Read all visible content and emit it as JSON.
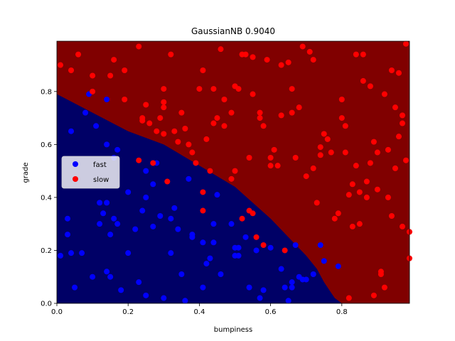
{
  "chart_data": {
    "type": "scatter",
    "title": "GaussianNB 0.9040",
    "xlabel": "bumpiness",
    "ylabel": "grade",
    "xlim": [
      0.0,
      0.99
    ],
    "ylim": [
      0.0,
      0.99
    ],
    "xticks": [
      0.0,
      0.2,
      0.4,
      0.6,
      0.8
    ],
    "yticks": [
      0.0,
      0.2,
      0.4,
      0.6,
      0.8
    ],
    "xtick_labels": [
      "0.0",
      "0.2",
      "0.4",
      "0.6",
      "0.8"
    ],
    "ytick_labels": [
      "0.0",
      "0.2",
      "0.4",
      "0.6",
      "0.8"
    ],
    "grid": false,
    "legend_position": "center-left",
    "background_regions": [
      {
        "class": "fast",
        "color": "#000066"
      },
      {
        "class": "slow",
        "color": "#800000"
      }
    ],
    "decision_boundary": {
      "x": [
        0.0,
        0.1,
        0.2,
        0.3,
        0.4,
        0.5,
        0.55,
        0.6,
        0.65,
        0.7,
        0.73,
        0.75,
        0.77,
        0.78,
        0.79,
        0.8
      ],
      "y": [
        0.79,
        0.72,
        0.65,
        0.6,
        0.52,
        0.44,
        0.38,
        0.32,
        0.25,
        0.18,
        0.13,
        0.08,
        0.04,
        0.02,
        0.01,
        0.0
      ]
    },
    "series": [
      {
        "name": "fast",
        "color": "#0000ff",
        "points": [
          [
            0.01,
            0.18
          ],
          [
            0.03,
            0.32
          ],
          [
            0.03,
            0.26
          ],
          [
            0.04,
            0.65
          ],
          [
            0.04,
            0.19
          ],
          [
            0.05,
            0.06
          ],
          [
            0.07,
            0.19
          ],
          [
            0.08,
            0.72
          ],
          [
            0.09,
            0.79
          ],
          [
            0.1,
            0.1
          ],
          [
            0.11,
            0.67
          ],
          [
            0.12,
            0.38
          ],
          [
            0.12,
            0.3
          ],
          [
            0.13,
            0.34
          ],
          [
            0.14,
            0.77
          ],
          [
            0.14,
            0.6
          ],
          [
            0.14,
            0.38
          ],
          [
            0.14,
            0.12
          ],
          [
            0.15,
            0.26
          ],
          [
            0.15,
            0.1
          ],
          [
            0.16,
            0.55
          ],
          [
            0.16,
            0.32
          ],
          [
            0.17,
            0.58
          ],
          [
            0.17,
            0.3
          ],
          [
            0.18,
            0.05
          ],
          [
            0.2,
            0.42
          ],
          [
            0.2,
            0.19
          ],
          [
            0.22,
            0.28
          ],
          [
            0.23,
            0.08
          ],
          [
            0.24,
            0.35
          ],
          [
            0.25,
            0.5
          ],
          [
            0.25,
            0.4
          ],
          [
            0.25,
            0.03
          ],
          [
            0.27,
            0.45
          ],
          [
            0.27,
            0.29
          ],
          [
            0.28,
            0.53
          ],
          [
            0.29,
            0.33
          ],
          [
            0.3,
            0.02
          ],
          [
            0.32,
            0.32
          ],
          [
            0.32,
            0.19
          ],
          [
            0.33,
            0.36
          ],
          [
            0.34,
            0.28
          ],
          [
            0.35,
            0.11
          ],
          [
            0.36,
            0.01
          ],
          [
            0.37,
            0.47
          ],
          [
            0.38,
            0.26
          ],
          [
            0.38,
            0.25
          ],
          [
            0.41,
            0.23
          ],
          [
            0.41,
            0.06
          ],
          [
            0.42,
            0.15
          ],
          [
            0.43,
            0.17
          ],
          [
            0.44,
            0.3
          ],
          [
            0.44,
            0.23
          ],
          [
            0.45,
            0.41
          ],
          [
            0.46,
            0.11
          ],
          [
            0.49,
            0.3
          ],
          [
            0.5,
            0.21
          ],
          [
            0.5,
            0.18
          ],
          [
            0.51,
            0.18
          ],
          [
            0.51,
            0.21
          ],
          [
            0.53,
            0.25
          ],
          [
            0.54,
            0.06
          ],
          [
            0.56,
            0.2
          ],
          [
            0.57,
            0.02
          ],
          [
            0.58,
            0.05
          ],
          [
            0.6,
            0.21
          ],
          [
            0.63,
            0.13
          ],
          [
            0.64,
            0.06
          ],
          [
            0.65,
            0.01
          ],
          [
            0.66,
            0.08
          ],
          [
            0.66,
            0.06
          ],
          [
            0.67,
            0.22
          ],
          [
            0.68,
            0.1
          ],
          [
            0.69,
            0.09
          ],
          [
            0.7,
            0.09
          ],
          [
            0.72,
            0.11
          ],
          [
            0.74,
            0.22
          ],
          [
            0.75,
            0.16
          ],
          [
            0.79,
            0.14
          ]
        ]
      },
      {
        "name": "slow",
        "color": "#ff0000",
        "points": [
          [
            0.01,
            0.9
          ],
          [
            0.04,
            0.88
          ],
          [
            0.06,
            0.94
          ],
          [
            0.1,
            0.86
          ],
          [
            0.1,
            0.8
          ],
          [
            0.15,
            0.86
          ],
          [
            0.16,
            0.92
          ],
          [
            0.19,
            0.88
          ],
          [
            0.19,
            0.77
          ],
          [
            0.23,
            0.97
          ],
          [
            0.23,
            0.54
          ],
          [
            0.24,
            0.7
          ],
          [
            0.24,
            0.69
          ],
          [
            0.25,
            0.75
          ],
          [
            0.26,
            0.68
          ],
          [
            0.27,
            0.53
          ],
          [
            0.28,
            0.65
          ],
          [
            0.29,
            0.7
          ],
          [
            0.3,
            0.76
          ],
          [
            0.3,
            0.74
          ],
          [
            0.3,
            0.64
          ],
          [
            0.3,
            0.81
          ],
          [
            0.31,
            0.46
          ],
          [
            0.32,
            0.94
          ],
          [
            0.33,
            0.65
          ],
          [
            0.34,
            0.61
          ],
          [
            0.35,
            0.72
          ],
          [
            0.36,
            0.66
          ],
          [
            0.37,
            0.6
          ],
          [
            0.38,
            0.57
          ],
          [
            0.39,
            0.53
          ],
          [
            0.4,
            0.81
          ],
          [
            0.41,
            0.88
          ],
          [
            0.41,
            0.42
          ],
          [
            0.41,
            0.35
          ],
          [
            0.42,
            0.62
          ],
          [
            0.43,
            0.5
          ],
          [
            0.44,
            0.81
          ],
          [
            0.44,
            0.68
          ],
          [
            0.45,
            0.7
          ],
          [
            0.46,
            0.96
          ],
          [
            0.47,
            0.67
          ],
          [
            0.47,
            0.77
          ],
          [
            0.49,
            0.72
          ],
          [
            0.49,
            0.47
          ],
          [
            0.5,
            0.5
          ],
          [
            0.5,
            0.82
          ],
          [
            0.51,
            0.81
          ],
          [
            0.52,
            0.94
          ],
          [
            0.52,
            0.32
          ],
          [
            0.53,
            0.94
          ],
          [
            0.54,
            0.55
          ],
          [
            0.54,
            0.35
          ],
          [
            0.55,
            0.93
          ],
          [
            0.55,
            0.79
          ],
          [
            0.55,
            0.34
          ],
          [
            0.56,
            0.25
          ],
          [
            0.57,
            0.72
          ],
          [
            0.57,
            0.7
          ],
          [
            0.58,
            0.22
          ],
          [
            0.58,
            0.67
          ],
          [
            0.59,
            0.92
          ],
          [
            0.6,
            0.55
          ],
          [
            0.6,
            0.52
          ],
          [
            0.61,
            0.58
          ],
          [
            0.62,
            0.52
          ],
          [
            0.63,
            0.9
          ],
          [
            0.63,
            0.71
          ],
          [
            0.64,
            0.2
          ],
          [
            0.65,
            0.91
          ],
          [
            0.66,
            0.81
          ],
          [
            0.66,
            0.72
          ],
          [
            0.67,
            0.55
          ],
          [
            0.68,
            0.74
          ],
          [
            0.69,
            0.97
          ],
          [
            0.7,
            0.48
          ],
          [
            0.71,
            0.95
          ],
          [
            0.72,
            0.92
          ],
          [
            0.72,
            0.51
          ],
          [
            0.73,
            0.38
          ],
          [
            0.74,
            0.59
          ],
          [
            0.74,
            0.56
          ],
          [
            0.75,
            0.64
          ],
          [
            0.76,
            0.62
          ],
          [
            0.77,
            0.57
          ],
          [
            0.78,
            0.32
          ],
          [
            0.79,
            0.34
          ],
          [
            0.8,
            0.7
          ],
          [
            0.8,
            0.77
          ],
          [
            0.81,
            0.57
          ],
          [
            0.81,
            0.67
          ],
          [
            0.82,
            0.02
          ],
          [
            0.82,
            0.41
          ],
          [
            0.83,
            0.45
          ],
          [
            0.83,
            0.29
          ],
          [
            0.84,
            0.94
          ],
          [
            0.84,
            0.52
          ],
          [
            0.85,
            0.42
          ],
          [
            0.85,
            0.3
          ],
          [
            0.86,
            0.94
          ],
          [
            0.86,
            0.84
          ],
          [
            0.87,
            0.46
          ],
          [
            0.87,
            0.4
          ],
          [
            0.88,
            0.82
          ],
          [
            0.88,
            0.53
          ],
          [
            0.89,
            0.61
          ],
          [
            0.89,
            0.03
          ],
          [
            0.9,
            0.57
          ],
          [
            0.9,
            0.43
          ],
          [
            0.91,
            0.12
          ],
          [
            0.91,
            0.11
          ],
          [
            0.92,
            0.06
          ],
          [
            0.92,
            0.79
          ],
          [
            0.93,
            0.58
          ],
          [
            0.93,
            0.4
          ],
          [
            0.94,
            0.88
          ],
          [
            0.94,
            0.33
          ],
          [
            0.95,
            0.74
          ],
          [
            0.95,
            0.51
          ],
          [
            0.96,
            0.87
          ],
          [
            0.96,
            0.63
          ],
          [
            0.97,
            0.71
          ],
          [
            0.97,
            0.68
          ],
          [
            0.97,
            0.29
          ],
          [
            0.98,
            0.98
          ],
          [
            0.98,
            0.54
          ],
          [
            0.99,
            0.27
          ],
          [
            0.99,
            0.17
          ]
        ]
      }
    ]
  }
}
